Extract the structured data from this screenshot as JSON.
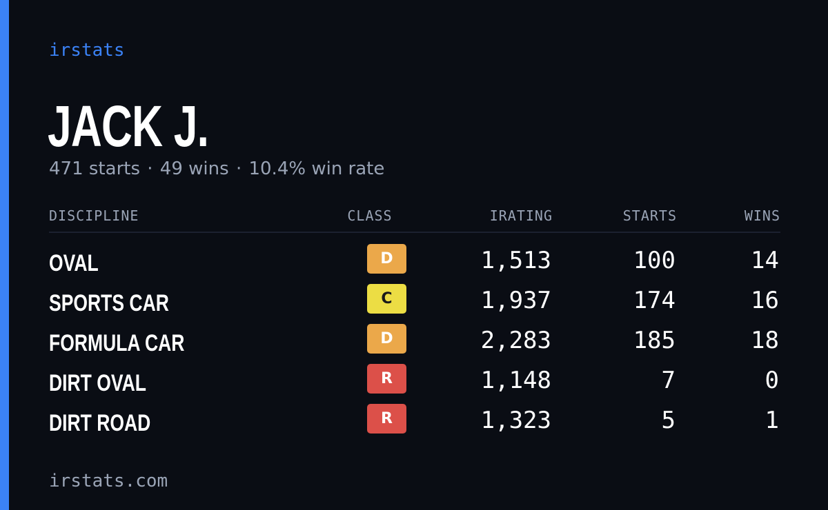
{
  "brand": "irstats",
  "player": {
    "name": "JACK J.",
    "starts": "471 starts",
    "wins": "49 wins",
    "win_rate": "10.4% win rate",
    "separator": "·"
  },
  "table": {
    "headers": {
      "discipline": "DISCIPLINE",
      "class": "CLASS",
      "irating": "IRATING",
      "starts": "STARTS",
      "wins": "WINS"
    },
    "rows": [
      {
        "discipline": "OVAL",
        "class": "D",
        "class_bg": "#eba84a",
        "class_fg": "#ffffff",
        "irating": "1,513",
        "starts": "100",
        "wins": "14"
      },
      {
        "discipline": "SPORTS CAR",
        "class": "C",
        "class_bg": "#ecdd44",
        "class_fg": "#1a1a1a",
        "irating": "1,937",
        "starts": "174",
        "wins": "16"
      },
      {
        "discipline": "FORMULA CAR",
        "class": "D",
        "class_bg": "#eba84a",
        "class_fg": "#ffffff",
        "irating": "2,283",
        "starts": "185",
        "wins": "18"
      },
      {
        "discipline": "DIRT OVAL",
        "class": "R",
        "class_bg": "#dc5049",
        "class_fg": "#ffffff",
        "irating": "1,148",
        "starts": "7",
        "wins": "0"
      },
      {
        "discipline": "DIRT ROAD",
        "class": "R",
        "class_bg": "#dc5049",
        "class_fg": "#ffffff",
        "irating": "1,323",
        "starts": "5",
        "wins": "1"
      }
    ]
  },
  "footer": "irstats.com",
  "colors": {
    "background": "#0a0d14",
    "accent": "#3b82f6",
    "muted_text": "#9aa4b6",
    "text": "#ffffff"
  }
}
